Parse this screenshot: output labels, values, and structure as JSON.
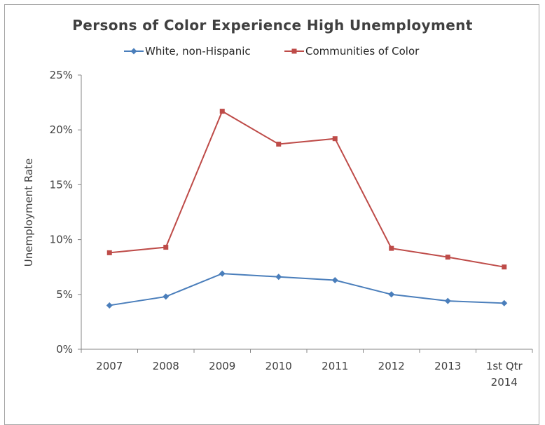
{
  "chart_data": {
    "type": "line",
    "title": "Persons of Color Experience High Unemployment",
    "xlabel": "",
    "ylabel": "Unemployment Rate",
    "categories": [
      [
        "2007"
      ],
      [
        "2008"
      ],
      [
        "2009"
      ],
      [
        "2010"
      ],
      [
        "2011"
      ],
      [
        "2012"
      ],
      [
        "2013"
      ],
      [
        "1st Qtr",
        "2014"
      ]
    ],
    "ylim": [
      0,
      25
    ],
    "yticks": [
      0,
      5,
      10,
      15,
      20,
      25
    ],
    "ytick_labels": [
      "0%",
      "5%",
      "10%",
      "15%",
      "20%",
      "25%"
    ],
    "grid": false,
    "legend_position": "top",
    "series": [
      {
        "name": "White, non-Hispanic",
        "color": "#4a7ebb",
        "marker": "diamond",
        "values": [
          4.0,
          4.8,
          6.9,
          6.6,
          6.3,
          5.0,
          4.4,
          4.2
        ]
      },
      {
        "name": "Communities of Color",
        "color": "#be4b48",
        "marker": "square",
        "values": [
          8.8,
          9.3,
          21.7,
          18.7,
          19.2,
          9.2,
          8.4,
          7.5
        ]
      }
    ]
  }
}
